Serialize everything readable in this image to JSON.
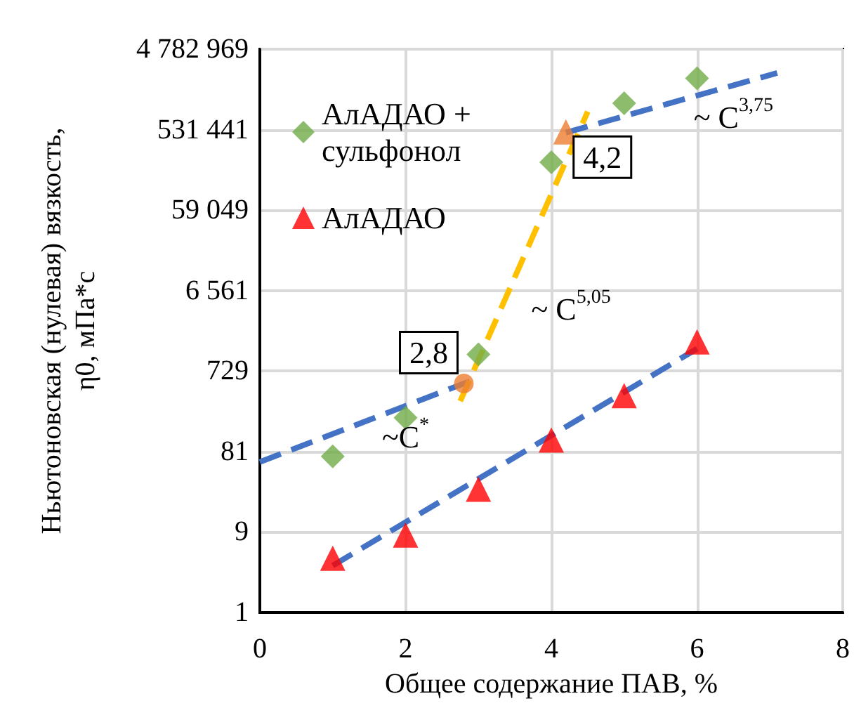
{
  "chart_data": {
    "type": "scatter",
    "xlabel": "Общее содержание ПАВ, %",
    "ylabel": "Ньютоновская (нулевая) вязкость,\nη0, мПа*с",
    "x": [
      1,
      2,
      3,
      4,
      5,
      6
    ],
    "series": [
      {
        "name": "АлАДАО +\nсульфонол",
        "color": "#70ad47",
        "marker": "diamond",
        "values": [
          71,
          204,
          1150,
          218000,
          1090000,
          2160000
        ]
      },
      {
        "name": "АлАДАО",
        "color": "#ff0000",
        "marker": "triangle",
        "values": [
          4.4,
          8.3,
          29,
          111,
          372,
          1620
        ]
      },
      {
        "color": "#ed7d31",
        "marker": "circle",
        "x": [
          2.8
        ],
        "values": [
          520
        ]
      },
      {
        "color": "#ed7d31",
        "marker": "triangle",
        "x": [
          4.2
        ],
        "values": [
          500000
        ]
      },
      {
        "type": "line",
        "color": "#4472c4",
        "line_style": "dashed",
        "marker": "none",
        "x": [
          1,
          6
        ],
        "values": [
          3.6,
          1340
        ]
      },
      {
        "type": "line",
        "color": "#4472c4",
        "line_style": "dashed",
        "marker": "none",
        "x": [
          0,
          2.9
        ],
        "values": [
          61,
          560
        ]
      },
      {
        "type": "line",
        "color": "#ffc000",
        "line_style": "dashed",
        "marker": "none",
        "x": [
          2.75,
          4.5
        ],
        "values": [
          320,
          870000
        ]
      },
      {
        "type": "line",
        "color": "#4472c4",
        "line_style": "dashed",
        "marker": "none",
        "x": [
          4.2,
          7.1
        ],
        "values": [
          490000,
          2500000
        ]
      }
    ],
    "xlim": [
      0,
      8
    ],
    "xticks": [
      0,
      2,
      4,
      6,
      8
    ],
    "log": "y",
    "ylim": [
      1,
      4782969
    ],
    "yticks": [
      1,
      9,
      81,
      729,
      {
        "value": 6561,
        "label": "6 561"
      },
      {
        "value": 59049,
        "label": "59 049"
      },
      {
        "value": 531441,
        "label": "531 441"
      },
      {
        "value": 4782969,
        "label": "4 782 969"
      }
    ],
    "grid": true,
    "legend": "top left",
    "annotations": [
      {
        "text": "2,8",
        "x": 2.8,
        "y": 520
      },
      {
        "text": "4,2",
        "x": 4.2,
        "y": 500000
      },
      {
        "text": "~ C$^{5,05}$",
        "x": 3.5,
        "y": 8800
      },
      {
        "text": "~ C$^{3,75}$",
        "x": 6.5,
        "y": 1800000
      },
      {
        "text": "~C$^{*}$",
        "x": 2,
        "y": 280
      }
    ]
  }
}
